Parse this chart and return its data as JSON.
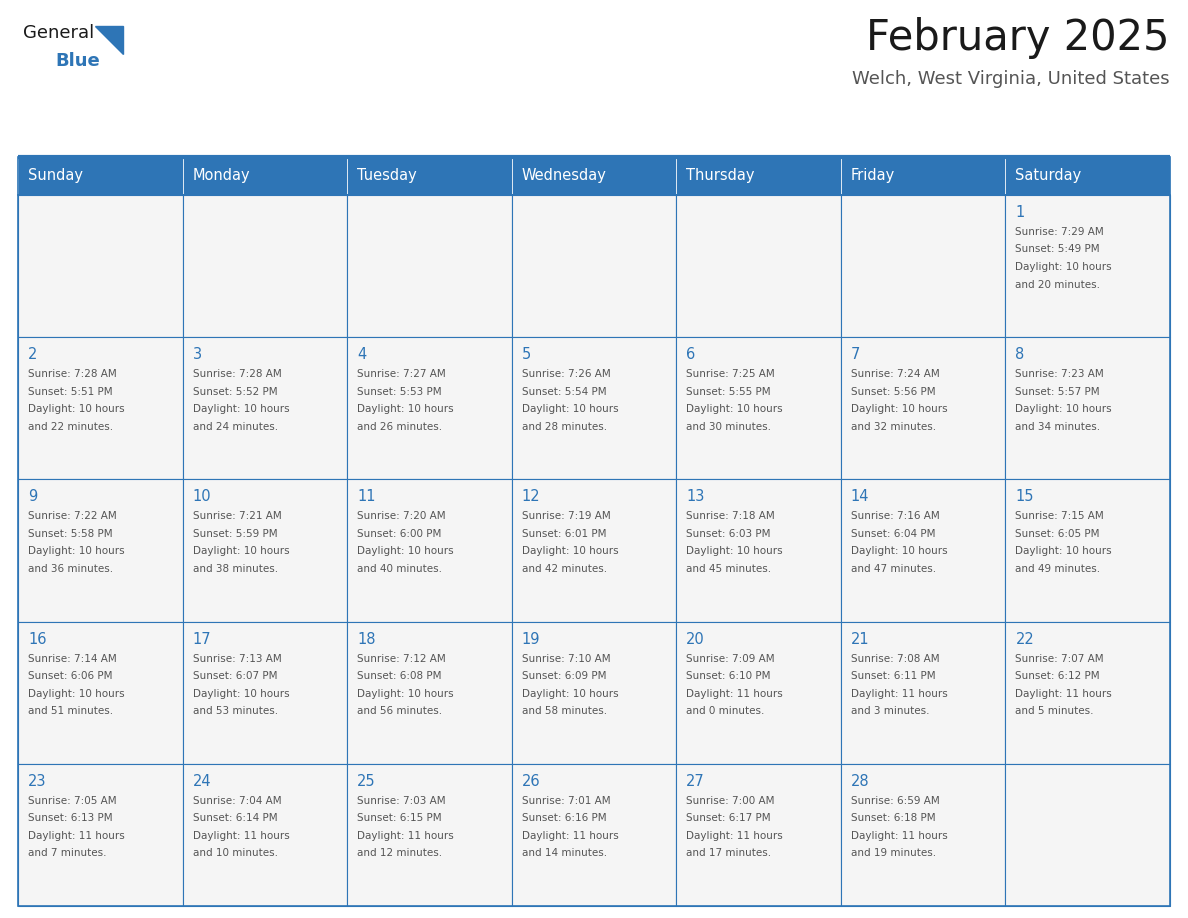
{
  "title": "February 2025",
  "subtitle": "Welch, West Virginia, United States",
  "header_bg": "#2E75B6",
  "header_text_color": "#FFFFFF",
  "cell_bg": "#F5F5F5",
  "day_number_color": "#2E75B6",
  "info_text_color": "#555555",
  "border_color": "#2E75B6",
  "days_of_week": [
    "Sunday",
    "Monday",
    "Tuesday",
    "Wednesday",
    "Thursday",
    "Friday",
    "Saturday"
  ],
  "calendar_data": [
    [
      null,
      null,
      null,
      null,
      null,
      null,
      {
        "day": "1",
        "sunrise": "7:29 AM",
        "sunset": "5:49 PM",
        "daylight_line3": "Daylight: 10 hours",
        "daylight_line4": "and 20 minutes."
      }
    ],
    [
      {
        "day": "2",
        "sunrise": "7:28 AM",
        "sunset": "5:51 PM",
        "daylight_line3": "Daylight: 10 hours",
        "daylight_line4": "and 22 minutes."
      },
      {
        "day": "3",
        "sunrise": "7:28 AM",
        "sunset": "5:52 PM",
        "daylight_line3": "Daylight: 10 hours",
        "daylight_line4": "and 24 minutes."
      },
      {
        "day": "4",
        "sunrise": "7:27 AM",
        "sunset": "5:53 PM",
        "daylight_line3": "Daylight: 10 hours",
        "daylight_line4": "and 26 minutes."
      },
      {
        "day": "5",
        "sunrise": "7:26 AM",
        "sunset": "5:54 PM",
        "daylight_line3": "Daylight: 10 hours",
        "daylight_line4": "and 28 minutes."
      },
      {
        "day": "6",
        "sunrise": "7:25 AM",
        "sunset": "5:55 PM",
        "daylight_line3": "Daylight: 10 hours",
        "daylight_line4": "and 30 minutes."
      },
      {
        "day": "7",
        "sunrise": "7:24 AM",
        "sunset": "5:56 PM",
        "daylight_line3": "Daylight: 10 hours",
        "daylight_line4": "and 32 minutes."
      },
      {
        "day": "8",
        "sunrise": "7:23 AM",
        "sunset": "5:57 PM",
        "daylight_line3": "Daylight: 10 hours",
        "daylight_line4": "and 34 minutes."
      }
    ],
    [
      {
        "day": "9",
        "sunrise": "7:22 AM",
        "sunset": "5:58 PM",
        "daylight_line3": "Daylight: 10 hours",
        "daylight_line4": "and 36 minutes."
      },
      {
        "day": "10",
        "sunrise": "7:21 AM",
        "sunset": "5:59 PM",
        "daylight_line3": "Daylight: 10 hours",
        "daylight_line4": "and 38 minutes."
      },
      {
        "day": "11",
        "sunrise": "7:20 AM",
        "sunset": "6:00 PM",
        "daylight_line3": "Daylight: 10 hours",
        "daylight_line4": "and 40 minutes."
      },
      {
        "day": "12",
        "sunrise": "7:19 AM",
        "sunset": "6:01 PM",
        "daylight_line3": "Daylight: 10 hours",
        "daylight_line4": "and 42 minutes."
      },
      {
        "day": "13",
        "sunrise": "7:18 AM",
        "sunset": "6:03 PM",
        "daylight_line3": "Daylight: 10 hours",
        "daylight_line4": "and 45 minutes."
      },
      {
        "day": "14",
        "sunrise": "7:16 AM",
        "sunset": "6:04 PM",
        "daylight_line3": "Daylight: 10 hours",
        "daylight_line4": "and 47 minutes."
      },
      {
        "day": "15",
        "sunrise": "7:15 AM",
        "sunset": "6:05 PM",
        "daylight_line3": "Daylight: 10 hours",
        "daylight_line4": "and 49 minutes."
      }
    ],
    [
      {
        "day": "16",
        "sunrise": "7:14 AM",
        "sunset": "6:06 PM",
        "daylight_line3": "Daylight: 10 hours",
        "daylight_line4": "and 51 minutes."
      },
      {
        "day": "17",
        "sunrise": "7:13 AM",
        "sunset": "6:07 PM",
        "daylight_line3": "Daylight: 10 hours",
        "daylight_line4": "and 53 minutes."
      },
      {
        "day": "18",
        "sunrise": "7:12 AM",
        "sunset": "6:08 PM",
        "daylight_line3": "Daylight: 10 hours",
        "daylight_line4": "and 56 minutes."
      },
      {
        "day": "19",
        "sunrise": "7:10 AM",
        "sunset": "6:09 PM",
        "daylight_line3": "Daylight: 10 hours",
        "daylight_line4": "and 58 minutes."
      },
      {
        "day": "20",
        "sunrise": "7:09 AM",
        "sunset": "6:10 PM",
        "daylight_line3": "Daylight: 11 hours",
        "daylight_line4": "and 0 minutes."
      },
      {
        "day": "21",
        "sunrise": "7:08 AM",
        "sunset": "6:11 PM",
        "daylight_line3": "Daylight: 11 hours",
        "daylight_line4": "and 3 minutes."
      },
      {
        "day": "22",
        "sunrise": "7:07 AM",
        "sunset": "6:12 PM",
        "daylight_line3": "Daylight: 11 hours",
        "daylight_line4": "and 5 minutes."
      }
    ],
    [
      {
        "day": "23",
        "sunrise": "7:05 AM",
        "sunset": "6:13 PM",
        "daylight_line3": "Daylight: 11 hours",
        "daylight_line4": "and 7 minutes."
      },
      {
        "day": "24",
        "sunrise": "7:04 AM",
        "sunset": "6:14 PM",
        "daylight_line3": "Daylight: 11 hours",
        "daylight_line4": "and 10 minutes."
      },
      {
        "day": "25",
        "sunrise": "7:03 AM",
        "sunset": "6:15 PM",
        "daylight_line3": "Daylight: 11 hours",
        "daylight_line4": "and 12 minutes."
      },
      {
        "day": "26",
        "sunrise": "7:01 AM",
        "sunset": "6:16 PM",
        "daylight_line3": "Daylight: 11 hours",
        "daylight_line4": "and 14 minutes."
      },
      {
        "day": "27",
        "sunrise": "7:00 AM",
        "sunset": "6:17 PM",
        "daylight_line3": "Daylight: 11 hours",
        "daylight_line4": "and 17 minutes."
      },
      {
        "day": "28",
        "sunrise": "6:59 AM",
        "sunset": "6:18 PM",
        "daylight_line3": "Daylight: 11 hours",
        "daylight_line4": "and 19 minutes."
      },
      null
    ]
  ]
}
